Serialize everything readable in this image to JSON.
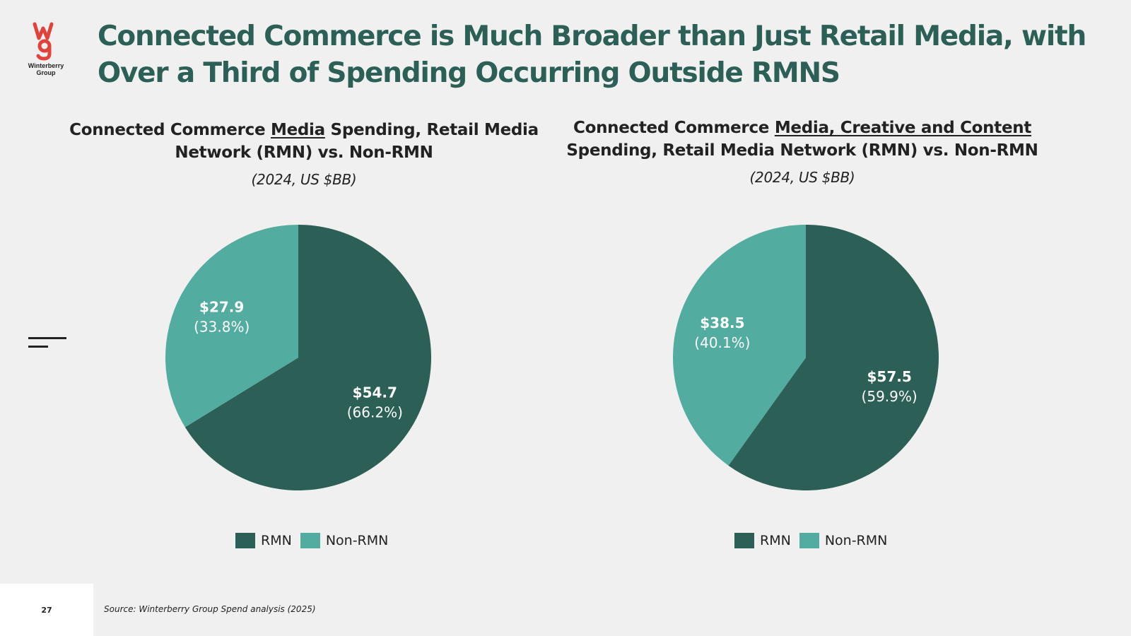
{
  "brand": {
    "logo_text": "Winterberry Group",
    "logo_color": "#e0433a"
  },
  "title": "Connected Commerce is Much Broader than Just Retail Media, with Over a Third of Spending Occurring Outside RMNS",
  "colors": {
    "rmn": "#2c6057",
    "non_rmn": "#52ac9f",
    "title": "#2c6057"
  },
  "chart_data": [
    {
      "type": "pie",
      "title_parts": [
        "Connected Commerce ",
        "Media",
        " Spending, Retail Media Network (RMN) vs. Non-RMN"
      ],
      "subtitle": "(2024, US $BB)",
      "series": [
        {
          "name": "RMN",
          "value": 54.7,
          "value_label": "$54.7",
          "pct_label": "(66.2%)"
        },
        {
          "name": "Non-RMN",
          "value": 27.9,
          "value_label": "$27.9",
          "pct_label": "(33.8%)"
        }
      ],
      "legend": [
        "RMN",
        "Non-RMN"
      ]
    },
    {
      "type": "pie",
      "title_parts": [
        "Connected Commerce ",
        "Media, Creative and Content",
        " Spending, Retail Media Network (RMN) vs. Non-RMN"
      ],
      "subtitle": "(2024, US $BB)",
      "series": [
        {
          "name": "RMN",
          "value": 57.5,
          "value_label": "$57.5",
          "pct_label": "(59.9%)"
        },
        {
          "name": "Non-RMN",
          "value": 38.5,
          "value_label": "$38.5",
          "pct_label": "(40.1%)"
        }
      ],
      "legend": [
        "RMN",
        "Non-RMN"
      ]
    }
  ],
  "footer": {
    "page_number": "27",
    "source": "Source: Winterberry Group Spend analysis (2025)"
  }
}
